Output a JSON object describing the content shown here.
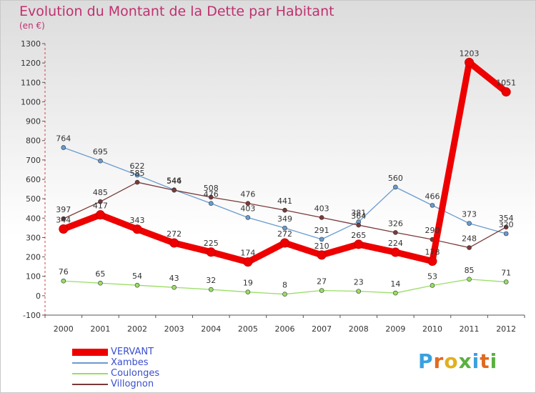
{
  "title": "Evolution du Montant de la Dette par Habitant",
  "unit_label": "(en €)",
  "logo_text": "Proxiti",
  "colors": {
    "title": "#c03070",
    "legend_text": "#3a4fd0",
    "axis_text": "#333333"
  },
  "chart_data": {
    "type": "line",
    "title": "Evolution du Montant de la Dette par Habitant",
    "ylabel": "(en €)",
    "xlabel": "",
    "x": [
      "2000",
      "2001",
      "2002",
      "2003",
      "2004",
      "2005",
      "2006",
      "2007",
      "2008",
      "2009",
      "2010",
      "2011",
      "2012"
    ],
    "ylim": [
      -100,
      1300
    ],
    "yticks": [
      -100,
      0,
      100,
      200,
      300,
      400,
      500,
      600,
      700,
      800,
      900,
      1000,
      1100,
      1200,
      1300
    ],
    "grid": false,
    "legend_position": "bottom-left",
    "series": [
      {
        "name": "VERVANT",
        "color": "#ee0000",
        "line_width": "thick",
        "values": [
          344,
          417,
          343,
          272,
          225,
          174,
          272,
          210,
          265,
          224,
          178,
          1203,
          1051
        ],
        "labels": [
          "344",
          "417",
          "343",
          "272",
          "225",
          "174",
          "272",
          "210",
          "265",
          "224",
          "178",
          "1203",
          "1051"
        ]
      },
      {
        "name": "Xambes",
        "color": "#6a9bd0",
        "line_width": "thin",
        "values": [
          764,
          695,
          622,
          546,
          476,
          403,
          349,
          291,
          381,
          560,
          466,
          373,
          320
        ],
        "labels": [
          "764",
          "695",
          "622",
          "546",
          "476",
          "403",
          "349",
          "291",
          "381",
          "560",
          "466",
          "373",
          "320"
        ]
      },
      {
        "name": "Coulonges",
        "color": "#99dd66",
        "line_width": "thin",
        "values": [
          76,
          65,
          54,
          43,
          32,
          19,
          8,
          27,
          23,
          14,
          53,
          85,
          71
        ],
        "labels": [
          "76",
          "65",
          "54",
          "43",
          "32",
          "19",
          "8",
          "27",
          "23",
          "14",
          "53",
          "85",
          "71"
        ]
      },
      {
        "name": "Villognon",
        "color": "#7a3a3a",
        "line_width": "thin",
        "values": [
          397,
          485,
          585,
          544,
          508,
          476,
          441,
          403,
          364,
          326,
          290,
          248,
          354
        ],
        "labels": [
          "397",
          "485",
          "585",
          "544",
          "508",
          "476",
          "441",
          "403",
          "364",
          "326",
          "290",
          "248",
          "354"
        ]
      }
    ]
  }
}
